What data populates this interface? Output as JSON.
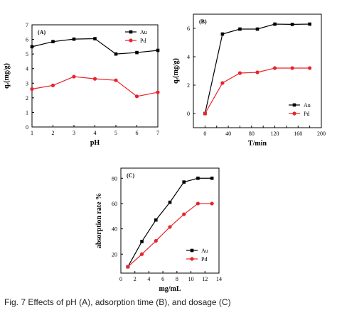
{
  "caption": "Fig. 7   Effects of pH (A), adsorption time (B), and dosage (C)",
  "colors": {
    "Au": "#000000",
    "Pd": "#e8242a"
  },
  "chart_data": [
    {
      "type": "line",
      "panel_label": "(A)",
      "xlabel": "pH",
      "ylabel": "qₑ(mg/g)",
      "xlim": [
        1,
        7
      ],
      "ylim": [
        0,
        7
      ],
      "xticks": [
        1,
        2,
        3,
        4,
        5,
        6,
        7
      ],
      "yticks": [
        0,
        1,
        2,
        3,
        4,
        5,
        6,
        7
      ],
      "legend": "top-right",
      "x": [
        1,
        2,
        3,
        4,
        5,
        6,
        7
      ],
      "series": [
        {
          "name": "Au",
          "marker": "square",
          "values": [
            5.5,
            5.85,
            6.02,
            6.05,
            5.0,
            5.1,
            5.25
          ]
        },
        {
          "name": "Pd",
          "marker": "circle",
          "values": [
            2.6,
            2.85,
            3.45,
            3.3,
            3.2,
            2.1,
            2.38
          ]
        }
      ]
    },
    {
      "type": "line",
      "panel_label": "(B)",
      "xlabel": "T/min",
      "ylabel": "qₑ(mg/g)",
      "xlim": [
        -20,
        200
      ],
      "ylim": [
        -1,
        7
      ],
      "xticks": [
        0,
        20,
        40,
        60,
        80,
        100,
        120,
        140,
        160,
        180,
        200
      ],
      "xticklabels": [
        "0",
        "",
        "40",
        "",
        "80",
        "",
        "120",
        "",
        "160",
        "",
        "200"
      ],
      "yticks": [
        0,
        2,
        4,
        6
      ],
      "legend": "bottom-right",
      "x": [
        0,
        30,
        60,
        90,
        120,
        150,
        180
      ],
      "series": [
        {
          "name": "Au",
          "marker": "square",
          "values": [
            0,
            5.6,
            5.95,
            5.95,
            6.3,
            6.28,
            6.3
          ]
        },
        {
          "name": "Pd",
          "marker": "circle",
          "values": [
            0,
            2.15,
            2.85,
            2.9,
            3.2,
            3.2,
            3.2
          ]
        }
      ]
    },
    {
      "type": "line",
      "panel_label": "(C)",
      "xlabel": "mg/mL",
      "ylabel": "absorption rate %",
      "xlim": [
        0,
        14
      ],
      "ylim": [
        5,
        88
      ],
      "xticks": [
        0,
        2,
        4,
        6,
        8,
        10,
        12,
        14
      ],
      "yticks": [
        20,
        40,
        60,
        80
      ],
      "legend": "bottom-right",
      "x": [
        1,
        3,
        5,
        7,
        9,
        11,
        13
      ],
      "series": [
        {
          "name": "Au",
          "marker": "square",
          "values": [
            10,
            30,
            47,
            61,
            77,
            80,
            80
          ]
        },
        {
          "name": "Pd",
          "marker": "circle",
          "values": [
            10,
            20,
            30.5,
            41.5,
            51.5,
            60,
            60
          ]
        }
      ]
    }
  ]
}
